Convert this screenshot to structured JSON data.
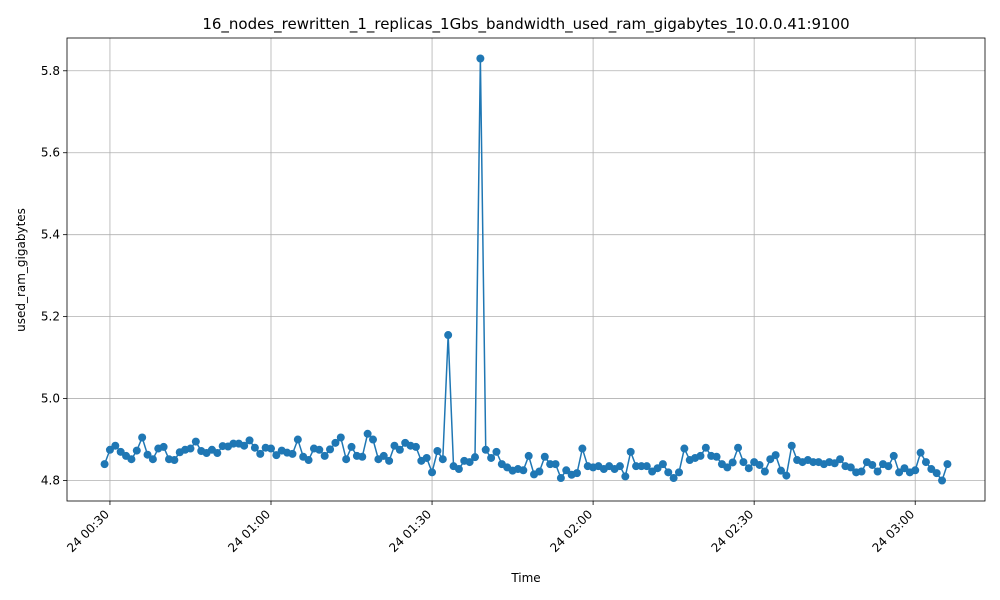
{
  "chart_data": {
    "type": "line",
    "title": "16_nodes_rewritten_1_replicas_1Gbs_bandwidth_used_ram_gigabytes_10.0.0.41:9100",
    "xlabel": "Time",
    "ylabel": "used_ram_gigabytes",
    "grid": true,
    "marker": "circle",
    "color": "#1f77b4",
    "x_start": "24 00:29",
    "x_end": "24 03:06",
    "x_step_minutes": 1,
    "xlim": [
      "24 00:22",
      "24 03:13"
    ],
    "ylim": [
      4.75,
      5.88
    ],
    "x_ticks": [
      "24 00:30",
      "24 01:00",
      "24 01:30",
      "24 02:00",
      "24 02:30",
      "24 03:00"
    ],
    "y_ticks": [
      "4.8",
      "5.0",
      "5.2",
      "5.4",
      "5.6",
      "5.8"
    ],
    "y": [
      4.84,
      4.875,
      4.885,
      4.87,
      4.86,
      4.852,
      4.873,
      4.905,
      4.863,
      4.852,
      4.878,
      4.882,
      4.852,
      4.85,
      4.869,
      4.875,
      4.878,
      4.895,
      4.872,
      4.867,
      4.875,
      4.867,
      4.884,
      4.883,
      4.89,
      4.89,
      4.885,
      4.898,
      4.88,
      4.865,
      4.88,
      4.878,
      4.862,
      4.873,
      4.868,
      4.865,
      4.9,
      4.858,
      4.85,
      4.878,
      4.875,
      4.86,
      4.876,
      4.892,
      4.905,
      4.852,
      4.882,
      4.86,
      4.858,
      4.914,
      4.9,
      4.852,
      4.86,
      4.848,
      4.885,
      4.875,
      4.892,
      4.885,
      4.882,
      4.848,
      4.855,
      4.82,
      4.872,
      4.852,
      5.155,
      4.835,
      4.828,
      4.848,
      4.845,
      4.857,
      5.83,
      4.875,
      4.855,
      4.87,
      4.84,
      4.832,
      4.824,
      4.828,
      4.825,
      4.86,
      4.815,
      4.822,
      4.858,
      4.84,
      4.84,
      4.806,
      4.825,
      4.814,
      4.818,
      4.878,
      4.835,
      4.832,
      4.835,
      4.828,
      4.835,
      4.828,
      4.835,
      4.81,
      4.87,
      4.835,
      4.835,
      4.835,
      4.822,
      4.83,
      4.84,
      4.82,
      4.806,
      4.82,
      4.878,
      4.85,
      4.855,
      4.86,
      4.88,
      4.86,
      4.858,
      4.84,
      4.832,
      4.844,
      4.88,
      4.845,
      4.83,
      4.845,
      4.838,
      4.822,
      4.852,
      4.862,
      4.824,
      4.812,
      4.885,
      4.85,
      4.845,
      4.85,
      4.845,
      4.845,
      4.84,
      4.845,
      4.842,
      4.852,
      4.835,
      4.832,
      4.82,
      4.822,
      4.845,
      4.838,
      4.822,
      4.84,
      4.835,
      4.86,
      4.82,
      4.83,
      4.82,
      4.825,
      4.868,
      4.845,
      4.828,
      4.818,
      4.8,
      4.84
    ]
  }
}
